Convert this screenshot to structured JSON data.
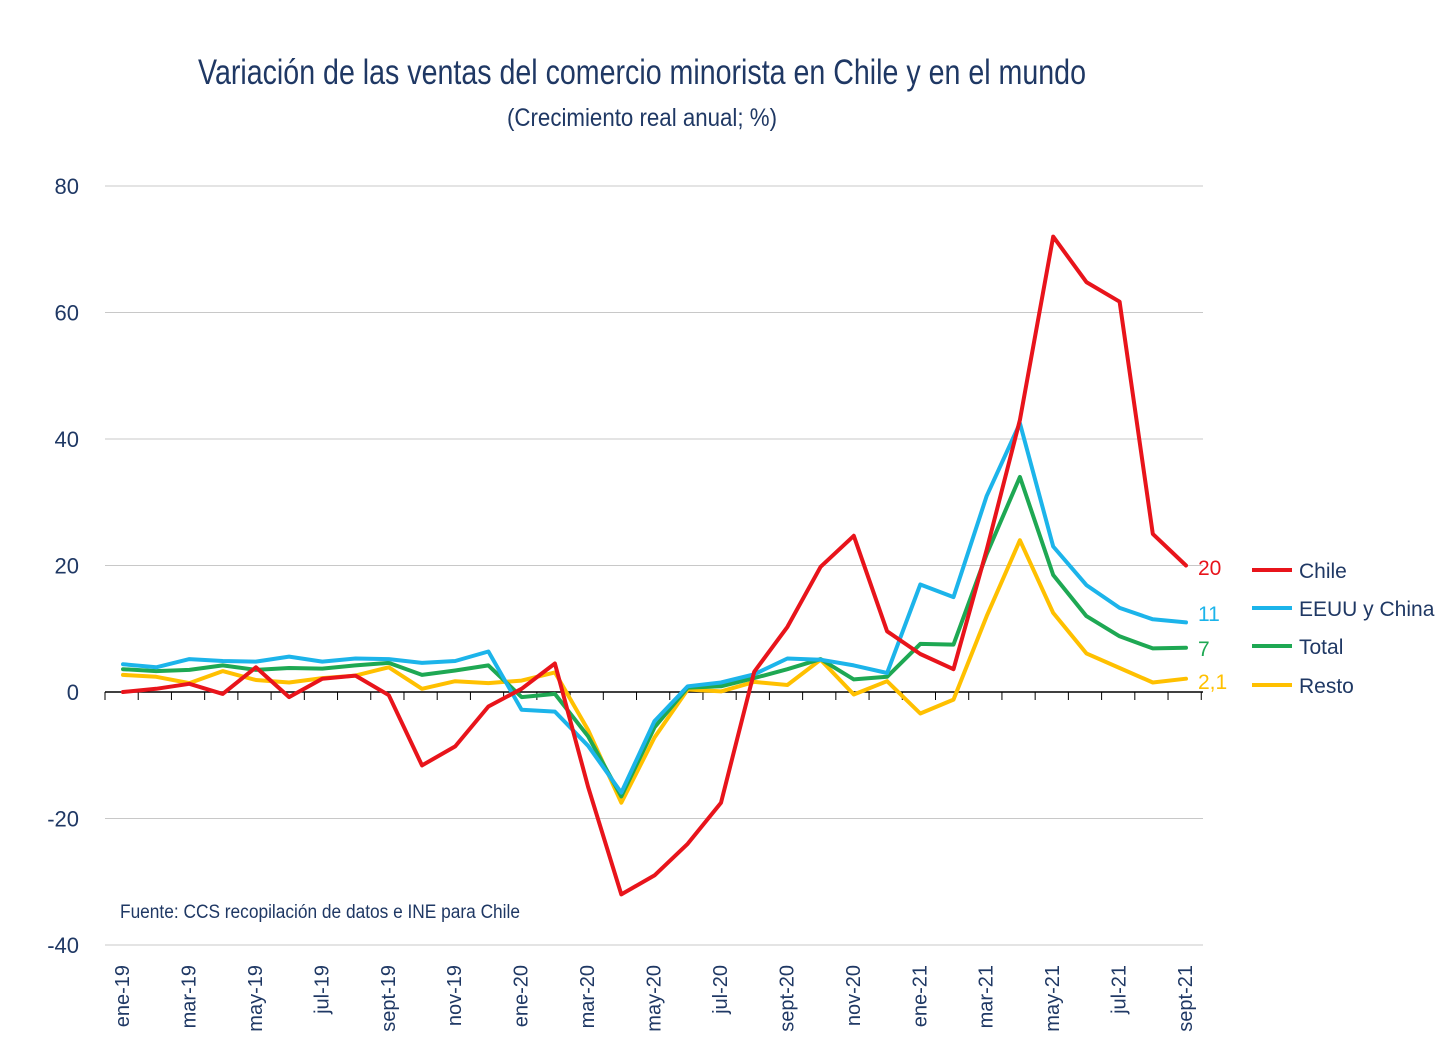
{
  "chart_data": {
    "type": "line",
    "title": "Variación de las ventas del comercio minorista en Chile y en el mundo",
    "subtitle": "(Crecimiento real anual; %)",
    "source": "Fuente:  CCS recopilación de datos e INE para Chile",
    "ylim": [
      -40,
      80
    ],
    "yticks": [
      80,
      60,
      40,
      20,
      0,
      -20,
      -40
    ],
    "ytick_labels": [
      "80",
      "60",
      "40",
      "20",
      "0",
      "-20",
      "-40"
    ],
    "grid": true,
    "legend_position": "right",
    "x": [
      "ene-19",
      "feb-19",
      "mar-19",
      "abr-19",
      "may-19",
      "jun-19",
      "jul-19",
      "ago-19",
      "sept-19",
      "oct-19",
      "nov-19",
      "dic-19",
      "ene-20",
      "feb-20",
      "mar-20",
      "abr-20",
      "may-20",
      "jun-20",
      "jul-20",
      "ago-20",
      "sept-20",
      "oct-20",
      "nov-20",
      "dic-20",
      "ene-21",
      "feb-21",
      "mar-21",
      "abr-21",
      "may-21",
      "jun-21",
      "jul-21",
      "ago-21",
      "sept-21"
    ],
    "xtick_labels": [
      "ene-19",
      "mar-19",
      "may-19",
      "jul-19",
      "sept-19",
      "nov-19",
      "ene-20",
      "mar-20",
      "may-20",
      "jul-20",
      "sept-20",
      "nov-20",
      "ene-21",
      "mar-21",
      "may-21",
      "jul-21",
      "sept-21"
    ],
    "series": [
      {
        "name": "Chile",
        "color": "#e8141b",
        "end_label": "20",
        "values": [
          0,
          0.5,
          1.3,
          -0.3,
          3.9,
          -0.8,
          2.1,
          2.6,
          -0.5,
          -11.6,
          -8.6,
          -2.3,
          0.5,
          4.5,
          -15.0,
          -32.0,
          -29.0,
          -24.0,
          -17.5,
          3.2,
          10.3,
          19.8,
          24.7,
          9.6,
          6.0,
          3.6,
          22.5,
          43.0,
          72.0,
          64.8,
          61.7,
          25.0,
          20.0
        ]
      },
      {
        "name": "EEUU y China",
        "color": "#1cb4ea",
        "end_label": "11",
        "values": [
          4.4,
          3.9,
          5.2,
          4.9,
          4.8,
          5.6,
          4.8,
          5.3,
          5.2,
          4.6,
          4.9,
          6.4,
          -2.8,
          -3.1,
          -8.5,
          -15.9,
          -4.6,
          0.9,
          1.5,
          2.8,
          5.3,
          5.1,
          4.2,
          3.0,
          17.0,
          15.0,
          31.0,
          42.5,
          23.0,
          16.9,
          13.3,
          11.5,
          11.0
        ]
      },
      {
        "name": "Total",
        "color": "#1ea853",
        "end_label": "7",
        "values": [
          3.6,
          3.3,
          3.5,
          4.2,
          3.5,
          3.8,
          3.7,
          4.2,
          4.6,
          2.7,
          3.4,
          4.2,
          -0.8,
          -0.3,
          -7.0,
          -16.5,
          -5.6,
          0.7,
          0.9,
          2.2,
          3.6,
          5.2,
          2.0,
          2.4,
          7.6,
          7.5,
          21.8,
          34.0,
          18.5,
          12.0,
          8.8,
          6.9,
          7.0
        ]
      },
      {
        "name": "Resto",
        "color": "#ffc000",
        "end_label": "2,1",
        "values": [
          2.7,
          2.4,
          1.4,
          3.3,
          1.9,
          1.5,
          2.2,
          2.6,
          3.9,
          0.5,
          1.7,
          1.4,
          1.8,
          3.1,
          -6.0,
          -17.5,
          -7.2,
          0.4,
          0.1,
          1.6,
          1.1,
          5.1,
          -0.4,
          1.7,
          -3.4,
          -1.2,
          12.0,
          24.0,
          12.5,
          6.1,
          3.8,
          1.5,
          2.1
        ]
      }
    ]
  }
}
